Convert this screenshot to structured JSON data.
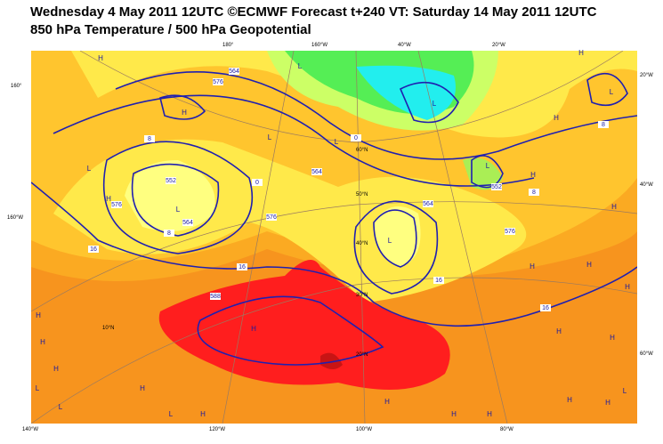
{
  "header": {
    "title": "Wednesday 4 May 2011 12UTC ©ECMWF Forecast t+240 VT: Saturday 14 May 2011 12UTC",
    "subtitle": "850 hPa Temperature / 500 hPa Geopotential"
  },
  "longitude_labels": [
    "140°W",
    "120°W",
    "100°W",
    "80°W",
    "180°",
    "160°W",
    "40°W",
    "20°W"
  ],
  "latitude_labels": [
    "160°",
    "160°W",
    "20°W",
    "40°W",
    "60°W",
    "60°N",
    "50°N",
    "40°N",
    "30°N",
    "20°N",
    "10°N"
  ],
  "pressure_centers": [
    "H",
    "H",
    "L",
    "L",
    "H",
    "L",
    "L",
    "L",
    "L",
    "L",
    "H",
    "H",
    "H",
    "H",
    "H",
    "H",
    "H",
    "H",
    "H",
    "H",
    "L",
    "L",
    "L",
    "H",
    "H",
    "H",
    "H",
    "H",
    "H",
    "H",
    "H",
    "H",
    "L",
    "H",
    "L",
    "L"
  ],
  "contour_labels": [
    "8",
    "0",
    "8",
    "16",
    "16",
    "16",
    "16",
    "8",
    "8",
    "0",
    "552",
    "564",
    "576",
    "576",
    "588",
    "564",
    "564",
    "552",
    "576",
    "564",
    "576"
  ]
}
